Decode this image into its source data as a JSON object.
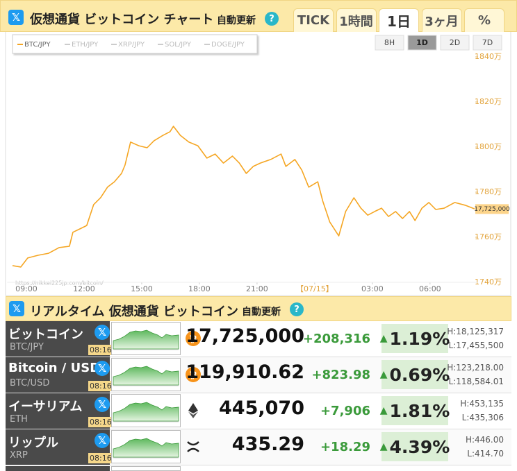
{
  "header": {
    "title": "仮想通貨 ビットコイン チャート",
    "auto_update": "自動更新",
    "help": "?",
    "tabs": [
      "TICK",
      "1時間",
      "1日",
      "3ヶ月",
      "%"
    ],
    "active_tab": 2
  },
  "chart": {
    "type": "line",
    "ranges": [
      "8H",
      "1D",
      "2D",
      "7D"
    ],
    "active_range": 1,
    "other_series": [
      "ETH/JPY",
      "XRP/JPY",
      "SOL/JPY",
      "DOGE/JPY"
    ],
    "watermark": "https://nikkei225jp.com/bitcoin/",
    "x": [
      8.28,
      8.71,
      9.07,
      9.61,
      10.16,
      10.7,
      11.24,
      11.42,
      11.78,
      12.14,
      12.5,
      12.86,
      13.22,
      13.58,
      13.95,
      14.13,
      14.42,
      14.85,
      15.28,
      15.64,
      16.11,
      16.47,
      16.65,
      17.01,
      17.45,
      17.92,
      18.39,
      18.82,
      19.25,
      19.72,
      20.08,
      20.44,
      20.8,
      21.17,
      21.71,
      22.25,
      22.5,
      22.97,
      23.33,
      23.69,
      24.16,
      24.42,
      24.78,
      25.25,
      25.61,
      26.04,
      26.4,
      26.76,
      27.12,
      27.48,
      27.84,
      28.21,
      28.57,
      28.93,
      29.22,
      29.58,
      29.94,
      30.3,
      30.74,
      31.28,
      31.82,
      32.32
    ],
    "series": [
      {
        "name": "BTC/JPY",
        "color": "#f5a623",
        "values": [
          1747.4,
          1746.8,
          1750.8,
          1752,
          1752.9,
          1755.4,
          1756,
          1762.2,
          1763.7,
          1765.2,
          1774.5,
          1777.5,
          1782.2,
          1784.6,
          1788.3,
          1792,
          1802.2,
          1800.6,
          1799.7,
          1802.8,
          1805.2,
          1806.8,
          1809.2,
          1805.2,
          1802.2,
          1800.6,
          1795.1,
          1796.9,
          1792.9,
          1796,
          1792.9,
          1788.3,
          1791.4,
          1792.9,
          1794.5,
          1796.9,
          1791.4,
          1794.5,
          1789.8,
          1782.2,
          1784.6,
          1776,
          1766.8,
          1760.6,
          1771.4,
          1777.5,
          1772.9,
          1769.8,
          1771.4,
          1772.9,
          1769.2,
          1771.4,
          1768.3,
          1771.4,
          1767.4,
          1772.9,
          1775.4,
          1772.3,
          1772.9,
          1775.4,
          1774.2,
          1772.6
        ]
      }
    ],
    "xlim": [
      8,
      32.5
    ],
    "xticks": [
      {
        "value": 9,
        "label": "09:00"
      },
      {
        "value": 12,
        "label": "12:00"
      },
      {
        "value": 15,
        "label": "15:00"
      },
      {
        "value": 18,
        "label": "18:00"
      },
      {
        "value": 21,
        "label": "21:00"
      },
      {
        "value": 24,
        "label": "【07/15】"
      },
      {
        "value": 27,
        "label": "03:00"
      },
      {
        "value": 30,
        "label": "06:00"
      }
    ],
    "ylim": [
      1740,
      1840
    ],
    "yticks": [
      {
        "value": 1740,
        "label": "1740万"
      },
      {
        "value": 1760,
        "label": "1760万"
      },
      {
        "value": 1780,
        "label": "1780万"
      },
      {
        "value": 1800,
        "label": "1800万"
      },
      {
        "value": 1820,
        "label": "1820万"
      },
      {
        "value": 1840,
        "label": "1840万"
      }
    ],
    "last_label": {
      "value": 1772.5,
      "label": "17,725,000"
    }
  },
  "section": {
    "title": "リアルタイム 仮想通貨 ビットコイン",
    "auto_update": "自動更新",
    "help": "?"
  },
  "table": {
    "rows": [
      {
        "name": "ビットコイン",
        "symbol": "BTC/JPY",
        "time": "08:16",
        "price": "17,725,000",
        "change": "+208,316",
        "percent": "1.19%",
        "high": "H:18,125,317",
        "low": "L:17,455,500",
        "icon": "btc"
      },
      {
        "name": "Bitcoin / USD",
        "symbol": "BTC/USD",
        "time": "08:16",
        "price": "119,910.62",
        "change": "+823.98",
        "percent": "0.69%",
        "high": "H:123,218.00",
        "low": "L:118,584.01",
        "icon": "btc"
      },
      {
        "name": "イーサリアム",
        "symbol": "ETH",
        "time": "08:16",
        "price": "445,070",
        "change": "+7,906",
        "percent": "1.81%",
        "high": "H:453,135",
        "low": "L:435,306",
        "icon": "eth"
      },
      {
        "name": "リップル",
        "symbol": "XRP",
        "time": "08:16",
        "price": "435.29",
        "change": "+18.29",
        "percent": "4.39%",
        "high": "H:446.00",
        "low": "L:414.70",
        "icon": "xrp"
      }
    ]
  }
}
